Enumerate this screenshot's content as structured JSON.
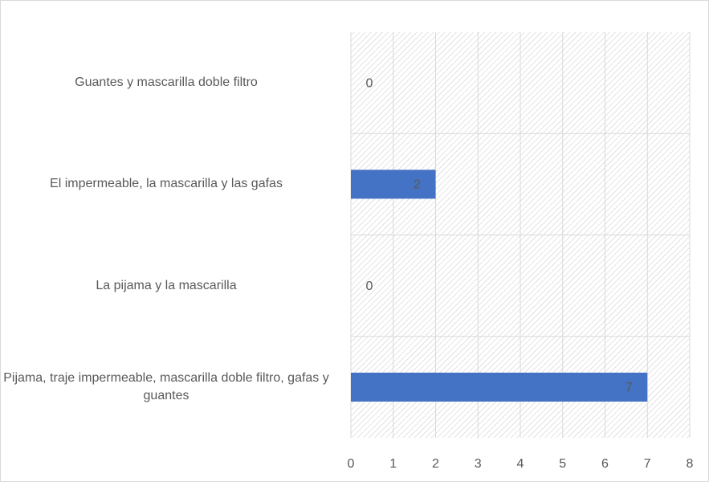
{
  "chart_data": {
    "type": "bar",
    "orientation": "horizontal",
    "categories": [
      "Guantes y mascarilla doble filtro",
      "El impermeable, la mascarilla y las gafas",
      "La pijama y la mascarilla",
      "Pijama, traje impermeable, mascarilla doble filtro, gafas y guantes"
    ],
    "values": [
      0,
      2,
      0,
      7
    ],
    "color": "#4472c4",
    "xlim": [
      0,
      8
    ],
    "xticks": [
      0,
      1,
      2,
      3,
      4,
      5,
      6,
      7,
      8
    ],
    "grid": true
  }
}
